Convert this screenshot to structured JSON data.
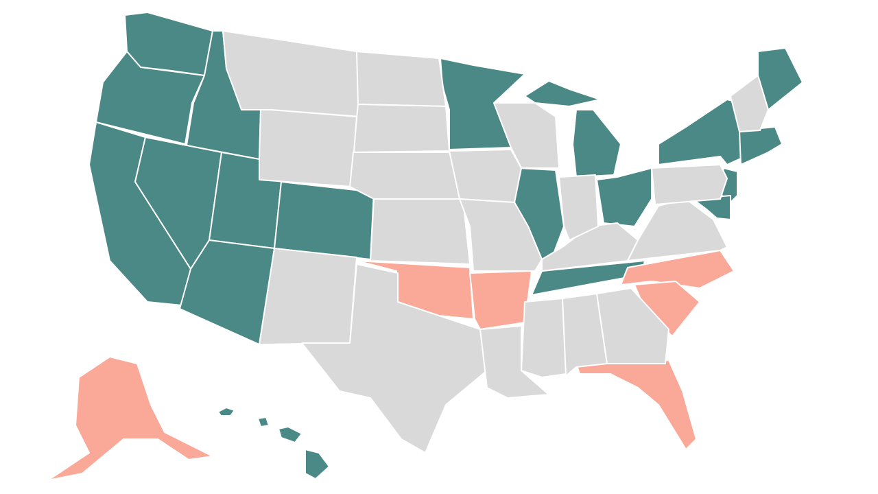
{
  "map": {
    "fills": [
      "#4a8985",
      "#faa898",
      "#d9d9d9"
    ],
    "border": "#ffffff"
  }
}
